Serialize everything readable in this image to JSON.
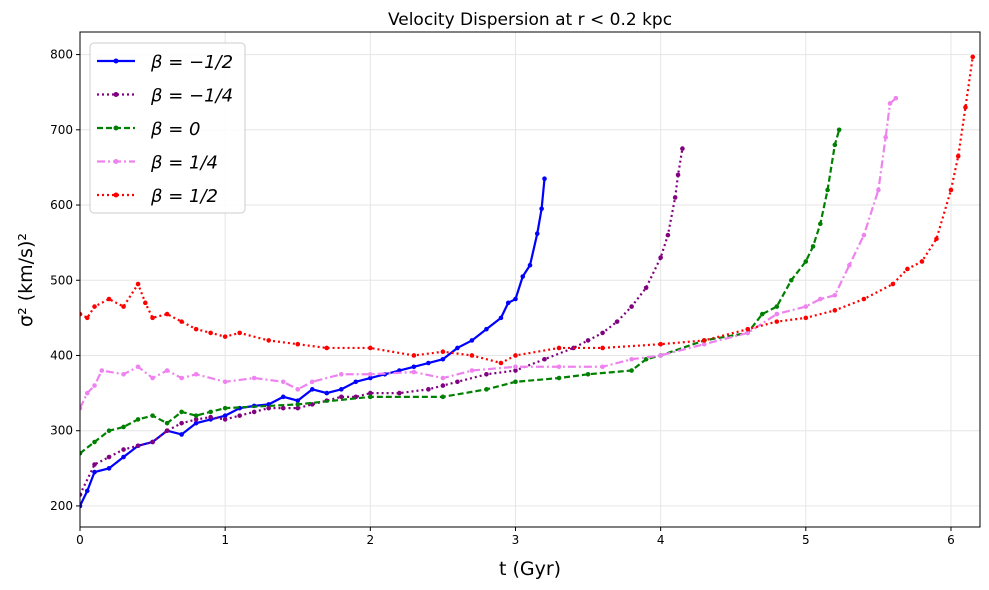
{
  "chart_data": {
    "type": "line",
    "title": "Velocity Dispersion at r < 0.2 kpc",
    "xlabel": "t (Gyr)",
    "ylabel": "σ² (km/s)²",
    "xlim": [
      0,
      6.2
    ],
    "ylim": [
      172,
      830
    ],
    "xticks": [
      0,
      1,
      2,
      3,
      4,
      5,
      6
    ],
    "yticks": [
      200,
      300,
      400,
      500,
      600,
      700,
      800
    ],
    "grid": true,
    "legend": "top-left",
    "series": [
      {
        "name": "β = −1/2",
        "color": "#0000ff",
        "dash": "",
        "x": [
          0,
          0.05,
          0.1,
          0.2,
          0.3,
          0.4,
          0.5,
          0.6,
          0.7,
          0.8,
          0.9,
          1.0,
          1.1,
          1.2,
          1.3,
          1.4,
          1.5,
          1.6,
          1.7,
          1.8,
          1.9,
          2.0,
          2.1,
          2.2,
          2.3,
          2.4,
          2.5,
          2.6,
          2.7,
          2.8,
          2.9,
          2.95,
          3.0,
          3.05,
          3.1,
          3.15,
          3.18,
          3.2
        ],
        "y": [
          200,
          220,
          245,
          250,
          265,
          280,
          285,
          300,
          295,
          310,
          315,
          320,
          330,
          333,
          335,
          345,
          340,
          355,
          350,
          355,
          365,
          370,
          375,
          380,
          385,
          390,
          395,
          410,
          420,
          435,
          450,
          470,
          475,
          505,
          520,
          562,
          595,
          635
        ]
      },
      {
        "name": "β = −1/4",
        "color": "#800080",
        "dash": "2,3",
        "x": [
          0,
          0.1,
          0.2,
          0.3,
          0.4,
          0.5,
          0.6,
          0.7,
          0.8,
          0.9,
          1.0,
          1.1,
          1.2,
          1.3,
          1.4,
          1.5,
          1.6,
          1.7,
          1.8,
          1.9,
          2.0,
          2.2,
          2.4,
          2.5,
          2.6,
          2.8,
          3.0,
          3.2,
          3.4,
          3.5,
          3.6,
          3.7,
          3.8,
          3.9,
          4.0,
          4.05,
          4.1,
          4.12,
          4.15
        ],
        "y": [
          215,
          255,
          265,
          275,
          280,
          285,
          300,
          310,
          315,
          318,
          315,
          320,
          325,
          330,
          330,
          330,
          335,
          340,
          345,
          345,
          350,
          350,
          355,
          360,
          365,
          375,
          380,
          395,
          410,
          420,
          430,
          445,
          465,
          490,
          530,
          560,
          610,
          640,
          675
        ]
      },
      {
        "name": "β = 0",
        "color": "#008000",
        "dash": "6,3",
        "x": [
          0,
          0.1,
          0.2,
          0.3,
          0.4,
          0.5,
          0.6,
          0.7,
          0.8,
          0.9,
          1.0,
          1.5,
          2.0,
          2.5,
          2.8,
          3.0,
          3.3,
          3.5,
          3.8,
          3.9,
          4.0,
          4.3,
          4.6,
          4.7,
          4.8,
          4.9,
          5.0,
          5.05,
          5.1,
          5.15,
          5.2,
          5.23
        ],
        "y": [
          270,
          285,
          300,
          305,
          315,
          320,
          310,
          325,
          320,
          325,
          330,
          335,
          345,
          345,
          355,
          365,
          370,
          375,
          380,
          395,
          400,
          420,
          430,
          455,
          465,
          500,
          525,
          545,
          575,
          620,
          680,
          700
        ]
      },
      {
        "name": "β = 1/4",
        "color": "#ee82ee",
        "dash": "8,3,2,3",
        "x": [
          0,
          0.05,
          0.1,
          0.15,
          0.3,
          0.4,
          0.5,
          0.6,
          0.7,
          0.8,
          1.0,
          1.2,
          1.4,
          1.5,
          1.6,
          1.8,
          2.0,
          2.3,
          2.5,
          2.7,
          3.0,
          3.3,
          3.6,
          3.8,
          4.0,
          4.3,
          4.6,
          4.8,
          5.0,
          5.1,
          5.2,
          5.3,
          5.4,
          5.5,
          5.55,
          5.58,
          5.62
        ],
        "y": [
          330,
          350,
          360,
          380,
          375,
          385,
          370,
          380,
          370,
          375,
          365,
          370,
          365,
          355,
          365,
          375,
          375,
          378,
          370,
          380,
          385,
          385,
          385,
          395,
          400,
          415,
          430,
          455,
          465,
          475,
          480,
          520,
          560,
          620,
          690,
          735,
          742
        ]
      },
      {
        "name": "β = 1/2",
        "color": "#ff0000",
        "dash": "2,3",
        "x": [
          0,
          0.05,
          0.1,
          0.2,
          0.3,
          0.4,
          0.45,
          0.5,
          0.6,
          0.7,
          0.8,
          0.9,
          1.0,
          1.1,
          1.3,
          1.5,
          1.7,
          2.0,
          2.3,
          2.5,
          2.7,
          2.9,
          3.0,
          3.3,
          3.6,
          4.0,
          4.3,
          4.6,
          4.8,
          5.0,
          5.2,
          5.4,
          5.6,
          5.7,
          5.8,
          5.9,
          6.0,
          6.05,
          6.1,
          6.15
        ],
        "y": [
          455,
          450,
          465,
          475,
          465,
          495,
          470,
          450,
          455,
          445,
          435,
          430,
          425,
          430,
          420,
          415,
          410,
          410,
          400,
          405,
          400,
          390,
          400,
          410,
          410,
          415,
          420,
          435,
          445,
          450,
          460,
          475,
          495,
          515,
          525,
          555,
          620,
          665,
          730,
          797
        ]
      }
    ]
  }
}
